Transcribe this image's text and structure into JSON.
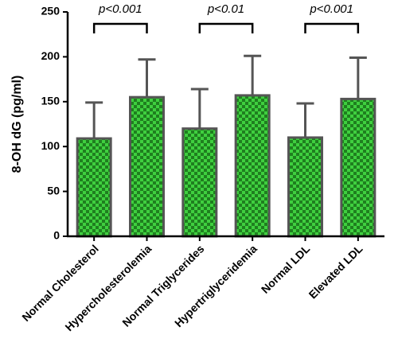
{
  "chart_data": {
    "type": "bar",
    "y_label": "8-OH dG (pg/ml)",
    "categories": [
      "Normal Cholesterol",
      "Hypercholesterolemia",
      "Normal Triglycerides",
      "Hypertriglyceridemia",
      "Normal LDL",
      "Elevated LDL"
    ],
    "values": [
      109,
      155,
      120,
      157,
      110,
      153
    ],
    "errors": [
      40,
      42,
      44,
      44,
      38,
      46
    ],
    "color": "#2db82d",
    "ylim": [
      0,
      250
    ],
    "yticks": [
      0,
      50,
      100,
      150,
      200,
      250
    ],
    "annotations": [
      "p<0.001",
      "p<0.01",
      "p<0.001"
    ]
  }
}
